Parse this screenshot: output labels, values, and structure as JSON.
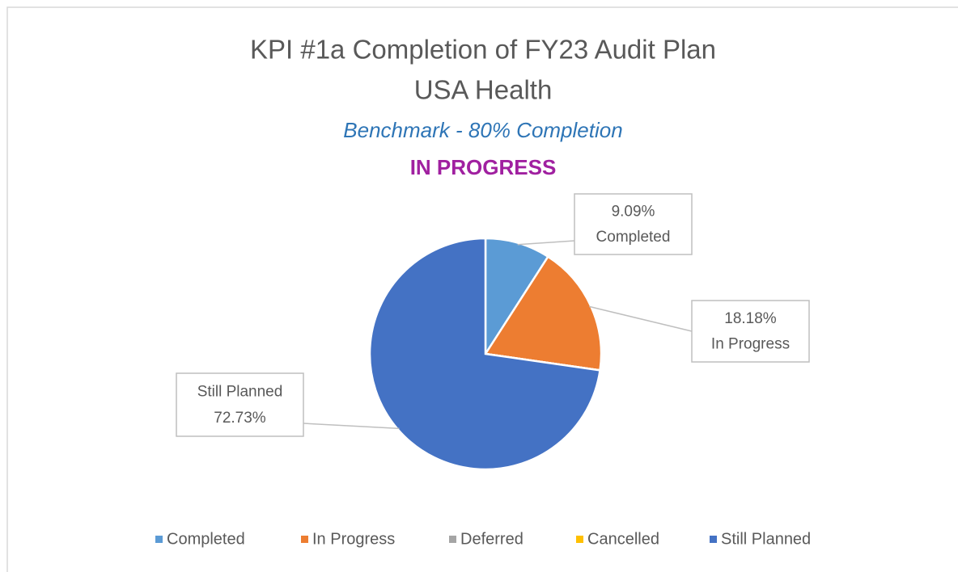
{
  "chart_data": {
    "type": "pie",
    "title": "KPI #1a Completion of FY23 Audit Plan",
    "subtitle": "USA Health",
    "annotations": [
      "Benchmark - 80% Completion",
      "IN PROGRESS"
    ],
    "categories": [
      "Completed",
      "In Progress",
      "Deferred",
      "Cancelled",
      "Still Planned"
    ],
    "values": [
      9.09,
      18.18,
      0,
      0,
      72.73
    ],
    "value_labels": [
      "9.09%",
      "18.18%",
      null,
      null,
      "72.73%"
    ],
    "colors": [
      "#5b9bd5",
      "#ed7d31",
      "#a5a5a5",
      "#ffc000",
      "#4472c4"
    ],
    "legend": "bottom"
  }
}
